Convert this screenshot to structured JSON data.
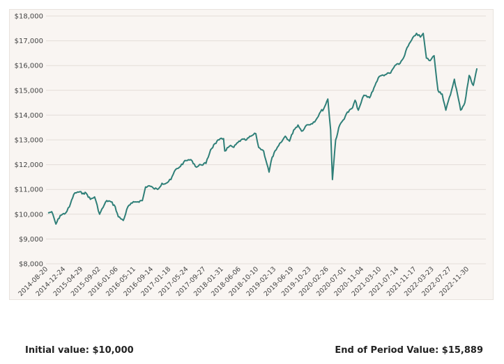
{
  "chart_data": {
    "type": "line",
    "title": "",
    "xlabel": "",
    "ylabel": "",
    "ylim": [
      8000,
      18000
    ],
    "grid": true,
    "y_ticks": [
      "$8,000",
      "$9,000",
      "$10,000",
      "$11,000",
      "$12,000",
      "$13,000",
      "$14,000",
      "$15,000",
      "$16,000",
      "$17,000",
      "$18,000"
    ],
    "x_ticks": [
      "2014-08-20",
      "2014-12-24",
      "2015-04-29",
      "2015-09-02",
      "2016-01-06",
      "2016-05-11",
      "2016-09-14",
      "2017-01-18",
      "2017-05-24",
      "2017-09-27",
      "2018-01-31",
      "2018-06-06",
      "2018-10-10",
      "2019-02-13",
      "2019-06-19",
      "2019-10-23",
      "2020-02-26",
      "2020-07-01",
      "2020-11-04",
      "2021-03-10",
      "2021-07-14",
      "2021-11-17",
      "2022-03-23",
      "2022-07-27",
      "2022-11-30"
    ],
    "line_color": "#2f7f78",
    "series": [
      {
        "x": [
          "2014-08-20",
          "2014-09-15",
          "2014-10-15",
          "2014-11-15",
          "2014-12-24",
          "2015-01-20",
          "2015-02-20",
          "2015-03-20",
          "2015-04-29",
          "2015-05-20",
          "2015-06-20",
          "2015-07-20",
          "2015-08-25",
          "2015-09-02",
          "2015-10-15",
          "2015-11-15",
          "2015-12-15",
          "2016-01-06",
          "2016-02-11",
          "2016-03-15",
          "2016-04-15",
          "2016-05-11",
          "2016-06-27",
          "2016-07-20",
          "2016-08-15",
          "2016-09-14",
          "2016-10-15",
          "2016-11-15",
          "2016-12-15",
          "2017-01-18",
          "2017-02-20",
          "2017-03-20",
          "2017-04-20",
          "2017-05-24",
          "2017-06-20",
          "2017-07-20",
          "2017-08-20",
          "2017-09-27",
          "2017-10-30",
          "2017-11-30",
          "2017-12-30",
          "2018-01-31",
          "2018-02-09",
          "2018-03-15",
          "2018-04-15",
          "2018-05-15",
          "2018-06-06",
          "2018-07-15",
          "2018-08-15",
          "2018-09-20",
          "2018-10-10",
          "2018-11-15",
          "2018-12-24",
          "2019-01-15",
          "2019-02-13",
          "2019-03-20",
          "2019-04-20",
          "2019-05-20",
          "2019-06-19",
          "2019-07-20",
          "2019-08-15",
          "2019-09-20",
          "2019-10-23",
          "2019-11-25",
          "2019-12-30",
          "2020-01-20",
          "2020-02-19",
          "2020-03-10",
          "2020-03-23",
          "2020-04-15",
          "2020-05-15",
          "2020-06-08",
          "2020-07-01",
          "2020-08-15",
          "2020-09-02",
          "2020-09-25",
          "2020-10-15",
          "2020-11-04",
          "2020-12-15",
          "2021-01-15",
          "2021-02-15",
          "2021-03-10",
          "2021-04-15",
          "2021-05-15",
          "2021-06-15",
          "2021-07-14",
          "2021-08-15",
          "2021-09-02",
          "2021-10-04",
          "2021-11-17",
          "2021-12-15",
          "2022-01-04",
          "2022-01-27",
          "2022-02-23",
          "2022-03-23",
          "2022-04-20",
          "2022-05-20",
          "2022-06-16",
          "2022-07-27",
          "2022-08-16",
          "2022-09-30",
          "2022-10-30",
          "2022-11-30",
          "2022-12-30",
          "2023-01-25"
        ],
        "values": [
          10050,
          10100,
          9600,
          9950,
          10050,
          10300,
          10800,
          10900,
          10850,
          10850,
          10600,
          10700,
          10000,
          10100,
          10550,
          10500,
          10300,
          9900,
          9750,
          10300,
          10450,
          10500,
          10550,
          11100,
          11150,
          11050,
          11000,
          11250,
          11250,
          11400,
          11800,
          11900,
          12100,
          12200,
          12150,
          11900,
          12000,
          12050,
          12600,
          12850,
          13000,
          13050,
          12550,
          12750,
          12700,
          12900,
          13000,
          13000,
          13150,
          13250,
          12700,
          12550,
          11700,
          12300,
          12600,
          12900,
          13150,
          12950,
          13400,
          13600,
          13350,
          13600,
          13650,
          13800,
          14150,
          14250,
          14650,
          13400,
          11400,
          13000,
          13600,
          13800,
          14050,
          14300,
          14600,
          14200,
          14500,
          14800,
          14700,
          15100,
          15500,
          15600,
          15650,
          15700,
          16000,
          16050,
          16300,
          16600,
          16950,
          17300,
          17150,
          17300,
          16300,
          16200,
          16400,
          15000,
          14850,
          14200,
          15000,
          15450,
          14200,
          14500,
          15600,
          15200,
          15889
        ]
      }
    ]
  },
  "footer": {
    "initial_label": "Initial value: $10,000",
    "end_label": "End of Period Value: $15,889"
  }
}
